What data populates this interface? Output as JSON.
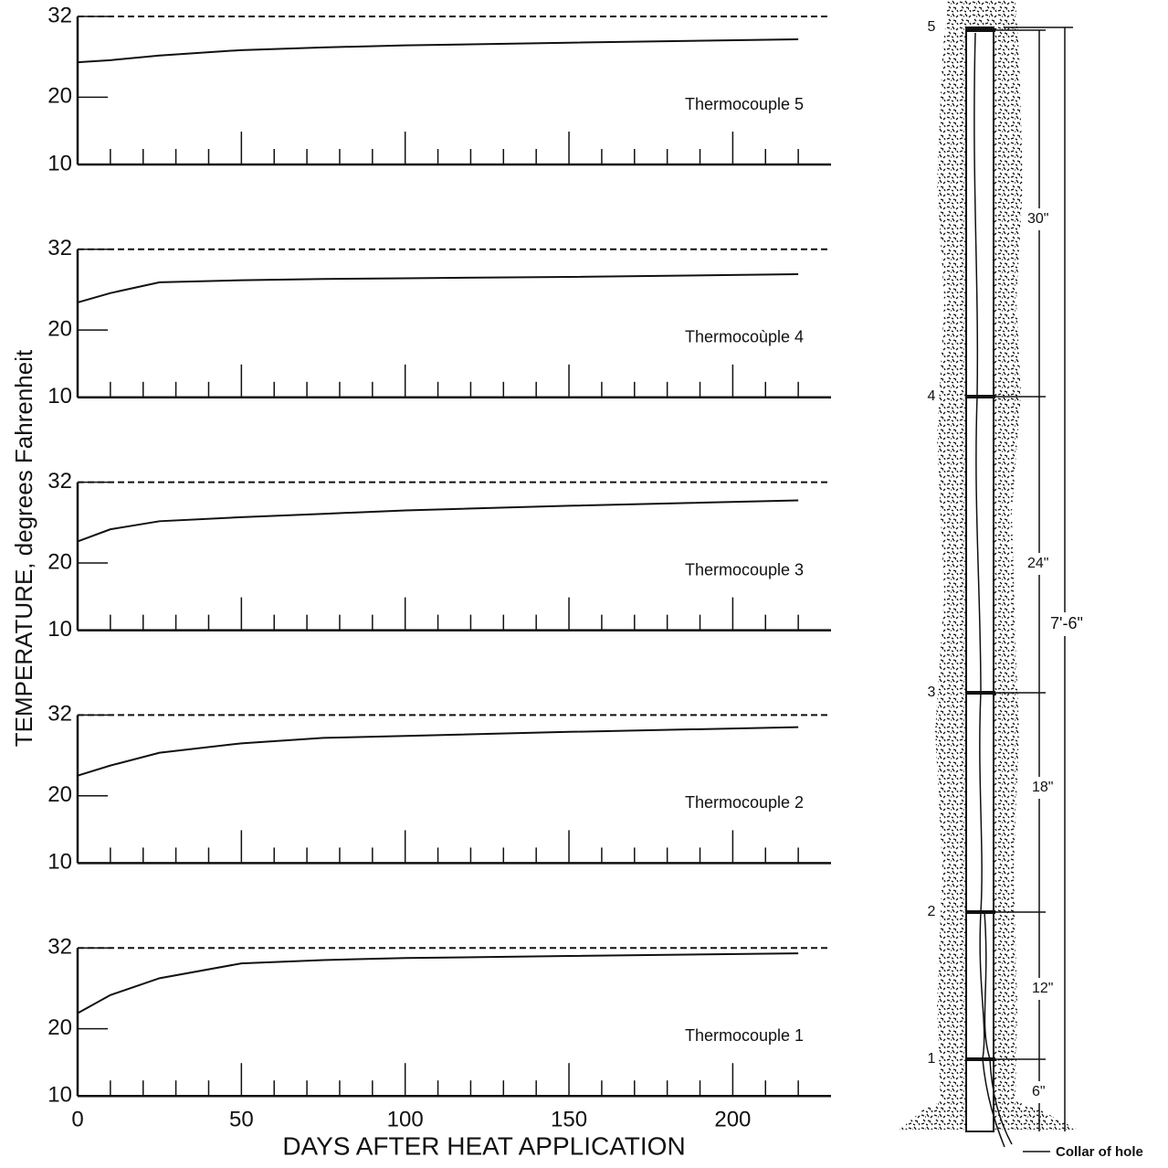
{
  "axis_labels": {
    "y": "TEMPERATURE, degrees Fahrenheit",
    "x": "DAYS AFTER HEAT APPLICATION"
  },
  "chart_data": [
    {
      "type": "line",
      "annotation": "Thermocouple 5",
      "x": [
        0,
        10,
        25,
        50,
        75,
        100,
        150,
        220
      ],
      "series": [
        {
          "color": "#111111",
          "values": [
            25.2,
            25.5,
            26.2,
            27.0,
            27.4,
            27.7,
            28.1,
            28.6
          ]
        }
      ],
      "xlim": [
        0,
        230
      ],
      "ylim": [
        10,
        32
      ],
      "yticks": [
        10,
        20,
        32
      ],
      "xticks": [
        0,
        50,
        100,
        150,
        200
      ],
      "minor_xticks": [
        10,
        20,
        30,
        40,
        60,
        70,
        80,
        90,
        110,
        120,
        130,
        140,
        160,
        170,
        180,
        190,
        210,
        220
      ],
      "show_xtick_labels": false,
      "reference_line": {
        "value": 32,
        "style": "dashed"
      }
    },
    {
      "type": "line",
      "annotation": "Thermocoùple 4",
      "x": [
        0,
        10,
        25,
        50,
        75,
        100,
        150,
        220
      ],
      "series": [
        {
          "color": "#111111",
          "values": [
            24.1,
            25.5,
            27.1,
            27.4,
            27.6,
            27.7,
            27.9,
            28.3
          ]
        }
      ],
      "xlim": [
        0,
        230
      ],
      "ylim": [
        10,
        32
      ],
      "yticks": [
        10,
        20,
        32
      ],
      "xticks": [
        0,
        50,
        100,
        150,
        200
      ],
      "minor_xticks": [
        10,
        20,
        30,
        40,
        60,
        70,
        80,
        90,
        110,
        120,
        130,
        140,
        160,
        170,
        180,
        190,
        210,
        220
      ],
      "show_xtick_labels": false,
      "reference_line": {
        "value": 32,
        "style": "dashed"
      }
    },
    {
      "type": "line",
      "annotation": "Thermocouple 3",
      "x": [
        0,
        10,
        25,
        50,
        75,
        100,
        150,
        220
      ],
      "series": [
        {
          "color": "#111111",
          "values": [
            23.2,
            25.0,
            26.2,
            26.8,
            27.3,
            27.8,
            28.5,
            29.3
          ]
        }
      ],
      "xlim": [
        0,
        230
      ],
      "ylim": [
        10,
        32
      ],
      "yticks": [
        10,
        20,
        32
      ],
      "xticks": [
        0,
        50,
        100,
        150,
        200
      ],
      "minor_xticks": [
        10,
        20,
        30,
        40,
        60,
        70,
        80,
        90,
        110,
        120,
        130,
        140,
        160,
        170,
        180,
        190,
        210,
        220
      ],
      "show_xtick_labels": false,
      "reference_line": {
        "value": 32,
        "style": "dashed"
      }
    },
    {
      "type": "line",
      "annotation": "Thermocouple 2",
      "x": [
        0,
        10,
        25,
        50,
        75,
        100,
        150,
        220
      ],
      "series": [
        {
          "color": "#111111",
          "values": [
            23.0,
            24.5,
            26.4,
            27.8,
            28.6,
            28.9,
            29.5,
            30.2
          ]
        }
      ],
      "xlim": [
        0,
        230
      ],
      "ylim": [
        10,
        32
      ],
      "yticks": [
        10,
        20,
        32
      ],
      "xticks": [
        0,
        50,
        100,
        150,
        200
      ],
      "minor_xticks": [
        10,
        20,
        30,
        40,
        60,
        70,
        80,
        90,
        110,
        120,
        130,
        140,
        160,
        170,
        180,
        190,
        210,
        220
      ],
      "show_xtick_labels": false,
      "reference_line": {
        "value": 32,
        "style": "dashed"
      }
    },
    {
      "type": "line",
      "annotation": "Thermocouple 1",
      "x": [
        0,
        10,
        25,
        50,
        75,
        100,
        150,
        220
      ],
      "series": [
        {
          "color": "#111111",
          "values": [
            22.3,
            25.0,
            27.5,
            29.7,
            30.2,
            30.5,
            30.8,
            31.2
          ]
        }
      ],
      "xlim": [
        0,
        230
      ],
      "ylim": [
        10,
        32
      ],
      "yticks": [
        10,
        20,
        32
      ],
      "xticks": [
        0,
        50,
        100,
        150,
        200
      ],
      "minor_xticks": [
        10,
        20,
        30,
        40,
        60,
        70,
        80,
        90,
        110,
        120,
        130,
        140,
        160,
        170,
        180,
        190,
        210,
        220
      ],
      "show_xtick_labels": true,
      "reference_line": {
        "value": 32,
        "style": "dashed"
      }
    }
  ],
  "diagram": {
    "levels": [
      "5",
      "4",
      "3",
      "2",
      "1"
    ],
    "spacings": [
      "30\"",
      "24\"",
      "18\"",
      "12\"",
      "6\""
    ],
    "total": "7'-6\"",
    "collar_label": "Collar of hole"
  }
}
